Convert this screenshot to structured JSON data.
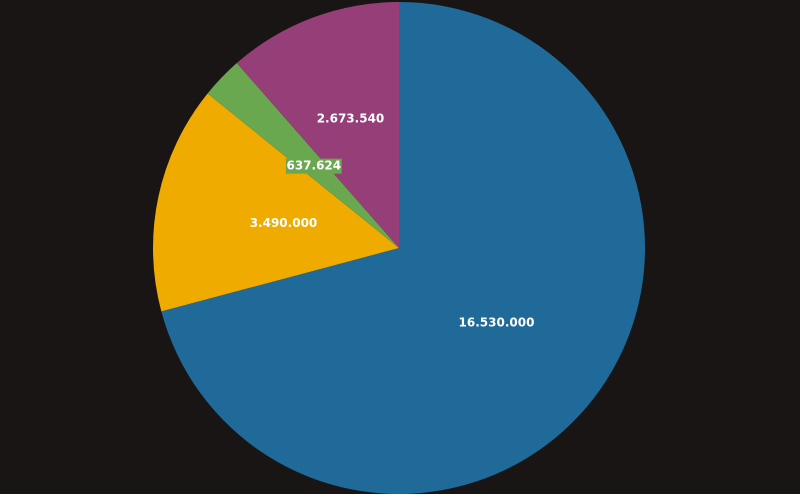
{
  "chart_data": {
    "type": "pie",
    "title": "",
    "start_angle_deg": 0,
    "direction": "clockwise",
    "legend": "none",
    "slices": [
      {
        "value": 16530000,
        "label": "16.530.000",
        "color": "#1f6a99"
      },
      {
        "value": 3490000,
        "label": "3.490.000",
        "color": "#f0ab00"
      },
      {
        "value": 637624,
        "label": "637.624",
        "color": "#6aa84f"
      },
      {
        "value": 2673540,
        "label": "2.673.540",
        "color": "#963e78"
      }
    ]
  }
}
